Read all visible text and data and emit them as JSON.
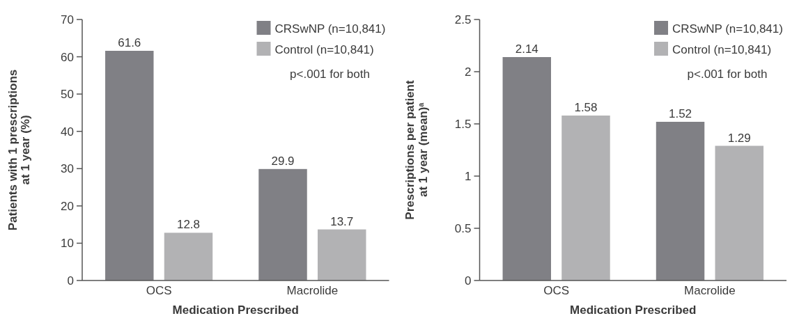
{
  "chart_data": [
    {
      "type": "bar",
      "categories": [
        "OCS",
        "Macrolide"
      ],
      "xlabel": "Medication Prescribed",
      "ylabel": "Patients with 1 prescriptions\nat 1 year (%)",
      "series": [
        {
          "name": "CRSwNP (n=10,841)",
          "color": "#808085",
          "values": [
            61.6,
            29.9
          ]
        },
        {
          "name": "Control (n=10,841)",
          "color": "#b2b2b4",
          "values": [
            12.8,
            13.7
          ]
        }
      ],
      "ylim": [
        0,
        70
      ],
      "yticks": [
        0,
        10,
        20,
        30,
        40,
        50,
        60,
        70
      ],
      "data_labels": true,
      "legend": "top right",
      "annotations": [
        "p<.001 for both"
      ]
    },
    {
      "type": "bar",
      "categories": [
        "OCS",
        "Macrolide"
      ],
      "xlabel": "Medication Prescribed",
      "ylabel": "Prescriptions per patient\nat 1 year (mean)$^{a}$",
      "series": [
        {
          "name": "CRSwNP (n=10,841)",
          "color": "#808085",
          "values": [
            2.14,
            1.52
          ]
        },
        {
          "name": "Control (n=10,841)",
          "color": "#b2b2b4",
          "values": [
            1.58,
            1.29
          ]
        }
      ],
      "ylim": [
        0,
        2.5
      ],
      "yticks": [
        0,
        0.5,
        1,
        1.5,
        2,
        2.5
      ],
      "data_labels": true,
      "legend": "top right",
      "annotations": [
        "p<.001 for both"
      ]
    }
  ]
}
